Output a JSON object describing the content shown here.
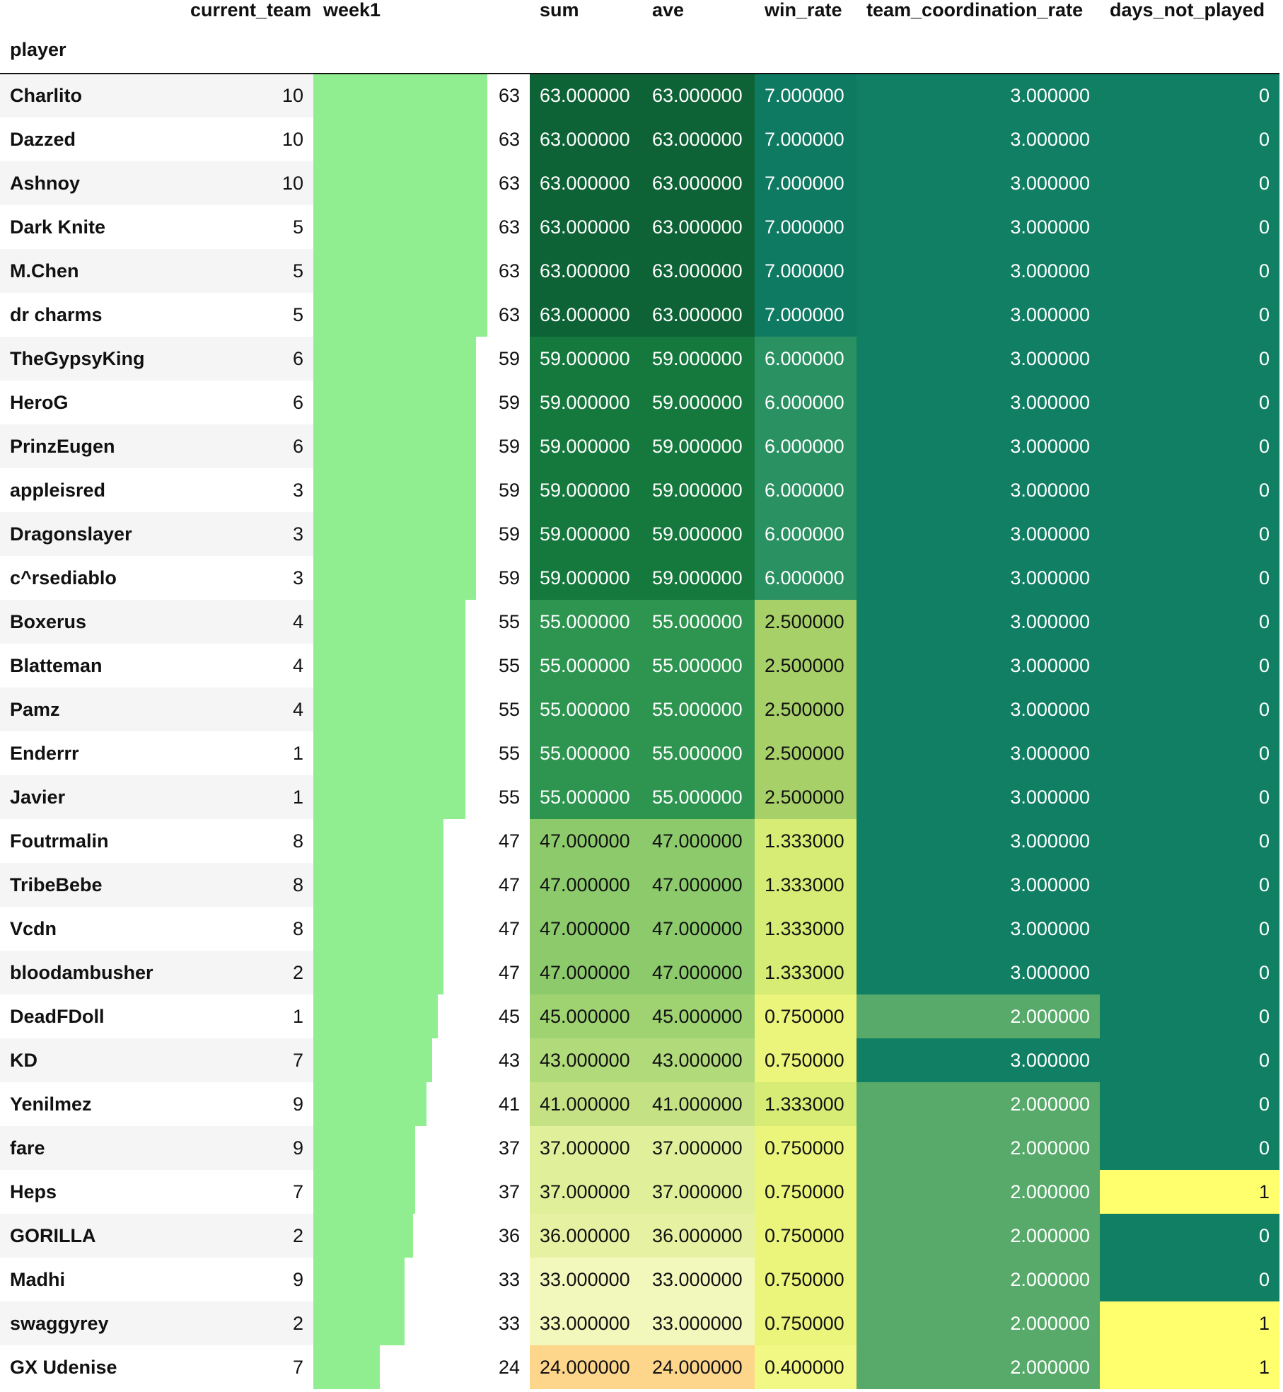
{
  "columns": {
    "index_name": "player",
    "current_team": "current_team",
    "week1": "week1",
    "sum": "sum",
    "ave": "ave",
    "win_rate": "win_rate",
    "team_coordination_rate": "team_coordination_rate",
    "days_not_played": "days_not_played"
  },
  "colors": {
    "bar": "#90ee90",
    "sum_scale": "YlGn",
    "win_scale": "YlGn",
    "coord_high": "#117f64",
    "coord_low": "#57aa6a",
    "days_zero": "#117f64",
    "days_one": "#ffff6e"
  },
  "week1_max": 63,
  "rows": [
    {
      "player": "Charlito",
      "current_team": "10",
      "week1": 63,
      "week1_text": "63",
      "sum": "63.000000",
      "ave": "63.000000",
      "win_rate": "7.000000",
      "team_coordination_rate": "3.000000",
      "days_not_played": "0",
      "sum_bg": "#0d6335",
      "win_bg": "#0e7a62",
      "coord_bg": "#117f64",
      "days_bg": "#117f64"
    },
    {
      "player": "Dazzed",
      "current_team": "10",
      "week1": 63,
      "week1_text": "63",
      "sum": "63.000000",
      "ave": "63.000000",
      "win_rate": "7.000000",
      "team_coordination_rate": "3.000000",
      "days_not_played": "0",
      "sum_bg": "#0d6335",
      "win_bg": "#0e7a62",
      "coord_bg": "#117f64",
      "days_bg": "#117f64"
    },
    {
      "player": "Ashnoy",
      "current_team": "10",
      "week1": 63,
      "week1_text": "63",
      "sum": "63.000000",
      "ave": "63.000000",
      "win_rate": "7.000000",
      "team_coordination_rate": "3.000000",
      "days_not_played": "0",
      "sum_bg": "#0d6335",
      "win_bg": "#0e7a62",
      "coord_bg": "#117f64",
      "days_bg": "#117f64"
    },
    {
      "player": "Dark Knite",
      "current_team": "5",
      "week1": 63,
      "week1_text": "63",
      "sum": "63.000000",
      "ave": "63.000000",
      "win_rate": "7.000000",
      "team_coordination_rate": "3.000000",
      "days_not_played": "0",
      "sum_bg": "#0d6335",
      "win_bg": "#0e7a62",
      "coord_bg": "#117f64",
      "days_bg": "#117f64"
    },
    {
      "player": "M.Chen",
      "current_team": "5",
      "week1": 63,
      "week1_text": "63",
      "sum": "63.000000",
      "ave": "63.000000",
      "win_rate": "7.000000",
      "team_coordination_rate": "3.000000",
      "days_not_played": "0",
      "sum_bg": "#0d6335",
      "win_bg": "#0e7a62",
      "coord_bg": "#117f64",
      "days_bg": "#117f64"
    },
    {
      "player": "dr charms",
      "current_team": "5",
      "week1": 63,
      "week1_text": "63",
      "sum": "63.000000",
      "ave": "63.000000",
      "win_rate": "7.000000",
      "team_coordination_rate": "3.000000",
      "days_not_played": "0",
      "sum_bg": "#0d6335",
      "win_bg": "#0e7a62",
      "coord_bg": "#117f64",
      "days_bg": "#117f64"
    },
    {
      "player": "TheGypsyKing",
      "current_team": "6",
      "week1": 59,
      "week1_text": "59",
      "sum": "59.000000",
      "ave": "59.000000",
      "win_rate": "6.000000",
      "team_coordination_rate": "3.000000",
      "days_not_played": "0",
      "sum_bg": "#15793e",
      "win_bg": "#2a9163",
      "coord_bg": "#117f64",
      "days_bg": "#117f64"
    },
    {
      "player": "HeroG",
      "current_team": "6",
      "week1": 59,
      "week1_text": "59",
      "sum": "59.000000",
      "ave": "59.000000",
      "win_rate": "6.000000",
      "team_coordination_rate": "3.000000",
      "days_not_played": "0",
      "sum_bg": "#15793e",
      "win_bg": "#2a9163",
      "coord_bg": "#117f64",
      "days_bg": "#117f64"
    },
    {
      "player": "PrinzEugen",
      "current_team": "6",
      "week1": 59,
      "week1_text": "59",
      "sum": "59.000000",
      "ave": "59.000000",
      "win_rate": "6.000000",
      "team_coordination_rate": "3.000000",
      "days_not_played": "0",
      "sum_bg": "#15793e",
      "win_bg": "#2a9163",
      "coord_bg": "#117f64",
      "days_bg": "#117f64"
    },
    {
      "player": "appleisred",
      "current_team": "3",
      "week1": 59,
      "week1_text": "59",
      "sum": "59.000000",
      "ave": "59.000000",
      "win_rate": "6.000000",
      "team_coordination_rate": "3.000000",
      "days_not_played": "0",
      "sum_bg": "#15793e",
      "win_bg": "#2a9163",
      "coord_bg": "#117f64",
      "days_bg": "#117f64"
    },
    {
      "player": "Dragonslayer",
      "current_team": "3",
      "week1": 59,
      "week1_text": "59",
      "sum": "59.000000",
      "ave": "59.000000",
      "win_rate": "6.000000",
      "team_coordination_rate": "3.000000",
      "days_not_played": "0",
      "sum_bg": "#15793e",
      "win_bg": "#2a9163",
      "coord_bg": "#117f64",
      "days_bg": "#117f64"
    },
    {
      "player": "c^rsediablo",
      "current_team": "3",
      "week1": 59,
      "week1_text": "59",
      "sum": "59.000000",
      "ave": "59.000000",
      "win_rate": "6.000000",
      "team_coordination_rate": "3.000000",
      "days_not_played": "0",
      "sum_bg": "#15793e",
      "win_bg": "#2a9163",
      "coord_bg": "#117f64",
      "days_bg": "#117f64"
    },
    {
      "player": "Boxerus",
      "current_team": "4",
      "week1": 55,
      "week1_text": "55",
      "sum": "55.000000",
      "ave": "55.000000",
      "win_rate": "2.500000",
      "team_coordination_rate": "3.000000",
      "days_not_played": "0",
      "sum_bg": "#2d954f",
      "win_bg": "#a8d069",
      "coord_bg": "#117f64",
      "days_bg": "#117f64"
    },
    {
      "player": "Blatteman",
      "current_team": "4",
      "week1": 55,
      "week1_text": "55",
      "sum": "55.000000",
      "ave": "55.000000",
      "win_rate": "2.500000",
      "team_coordination_rate": "3.000000",
      "days_not_played": "0",
      "sum_bg": "#2d954f",
      "win_bg": "#a8d069",
      "coord_bg": "#117f64",
      "days_bg": "#117f64"
    },
    {
      "player": "Pamz",
      "current_team": "4",
      "week1": 55,
      "week1_text": "55",
      "sum": "55.000000",
      "ave": "55.000000",
      "win_rate": "2.500000",
      "team_coordination_rate": "3.000000",
      "days_not_played": "0",
      "sum_bg": "#2d954f",
      "win_bg": "#a8d069",
      "coord_bg": "#117f64",
      "days_bg": "#117f64"
    },
    {
      "player": "Enderrr",
      "current_team": "1",
      "week1": 55,
      "week1_text": "55",
      "sum": "55.000000",
      "ave": "55.000000",
      "win_rate": "2.500000",
      "team_coordination_rate": "3.000000",
      "days_not_played": "0",
      "sum_bg": "#2d954f",
      "win_bg": "#a8d069",
      "coord_bg": "#117f64",
      "days_bg": "#117f64"
    },
    {
      "player": "Javier",
      "current_team": "1",
      "week1": 55,
      "week1_text": "55",
      "sum": "55.000000",
      "ave": "55.000000",
      "win_rate": "2.500000",
      "team_coordination_rate": "3.000000",
      "days_not_played": "0",
      "sum_bg": "#2d954f",
      "win_bg": "#a8d069",
      "coord_bg": "#117f64",
      "days_bg": "#117f64"
    },
    {
      "player": "Foutrmalin",
      "current_team": "8",
      "week1": 47,
      "week1_text": "47",
      "sum": "47.000000",
      "ave": "47.000000",
      "win_rate": "1.333000",
      "team_coordination_rate": "3.000000",
      "days_not_played": "0",
      "sum_bg": "#8cca6c",
      "win_bg": "#d7ec74",
      "coord_bg": "#117f64",
      "days_bg": "#117f64"
    },
    {
      "player": "TribeBebe",
      "current_team": "8",
      "week1": 47,
      "week1_text": "47",
      "sum": "47.000000",
      "ave": "47.000000",
      "win_rate": "1.333000",
      "team_coordination_rate": "3.000000",
      "days_not_played": "0",
      "sum_bg": "#8cca6c",
      "win_bg": "#d7ec74",
      "coord_bg": "#117f64",
      "days_bg": "#117f64"
    },
    {
      "player": "Vcdn",
      "current_team": "8",
      "week1": 47,
      "week1_text": "47",
      "sum": "47.000000",
      "ave": "47.000000",
      "win_rate": "1.333000",
      "team_coordination_rate": "3.000000",
      "days_not_played": "0",
      "sum_bg": "#8cca6c",
      "win_bg": "#d7ec74",
      "coord_bg": "#117f64",
      "days_bg": "#117f64"
    },
    {
      "player": "bloodambusher",
      "current_team": "2",
      "week1": 47,
      "week1_text": "47",
      "sum": "47.000000",
      "ave": "47.000000",
      "win_rate": "1.333000",
      "team_coordination_rate": "3.000000",
      "days_not_played": "0",
      "sum_bg": "#8cca6c",
      "win_bg": "#d7ec74",
      "coord_bg": "#117f64",
      "days_bg": "#117f64"
    },
    {
      "player": "DeadFDoll",
      "current_team": "1",
      "week1": 45,
      "week1_text": "45",
      "sum": "45.000000",
      "ave": "45.000000",
      "win_rate": "0.750000",
      "team_coordination_rate": "2.000000",
      "days_not_played": "0",
      "sum_bg": "#9fd372",
      "win_bg": "#ebf57c",
      "coord_bg": "#57aa6a",
      "days_bg": "#117f64"
    },
    {
      "player": "KD",
      "current_team": "7",
      "week1": 43,
      "week1_text": "43",
      "sum": "43.000000",
      "ave": "43.000000",
      "win_rate": "0.750000",
      "team_coordination_rate": "3.000000",
      "days_not_played": "0",
      "sum_bg": "#b1da7a",
      "win_bg": "#ebf57c",
      "coord_bg": "#117f64",
      "days_bg": "#117f64"
    },
    {
      "player": "Yenilmez",
      "current_team": "9",
      "week1": 41,
      "week1_text": "41",
      "sum": "41.000000",
      "ave": "41.000000",
      "win_rate": "1.333000",
      "team_coordination_rate": "2.000000",
      "days_not_played": "0",
      "sum_bg": "#c4e284",
      "win_bg": "#d7ec74",
      "coord_bg": "#57aa6a",
      "days_bg": "#117f64"
    },
    {
      "player": "fare",
      "current_team": "9",
      "week1": 37,
      "week1_text": "37",
      "sum": "37.000000",
      "ave": "37.000000",
      "win_rate": "0.750000",
      "team_coordination_rate": "2.000000",
      "days_not_played": "0",
      "sum_bg": "#e0ef9a",
      "win_bg": "#ebf57c",
      "coord_bg": "#57aa6a",
      "days_bg": "#117f64"
    },
    {
      "player": "Heps",
      "current_team": "7",
      "week1": 37,
      "week1_text": "37",
      "sum": "37.000000",
      "ave": "37.000000",
      "win_rate": "0.750000",
      "team_coordination_rate": "2.000000",
      "days_not_played": "1",
      "sum_bg": "#e0ef9a",
      "win_bg": "#ebf57c",
      "coord_bg": "#57aa6a",
      "days_bg": "#ffff6e"
    },
    {
      "player": "GORILLA",
      "current_team": "2",
      "week1": 36,
      "week1_text": "36",
      "sum": "36.000000",
      "ave": "36.000000",
      "win_rate": "0.750000",
      "team_coordination_rate": "2.000000",
      "days_not_played": "0",
      "sum_bg": "#e6f2a2",
      "win_bg": "#ebf57c",
      "coord_bg": "#57aa6a",
      "days_bg": "#117f64"
    },
    {
      "player": "Madhi",
      "current_team": "9",
      "week1": 33,
      "week1_text": "33",
      "sum": "33.000000",
      "ave": "33.000000",
      "win_rate": "0.750000",
      "team_coordination_rate": "2.000000",
      "days_not_played": "0",
      "sum_bg": "#f2f8bb",
      "win_bg": "#ebf57c",
      "coord_bg": "#57aa6a",
      "days_bg": "#117f64"
    },
    {
      "player": "swaggyrey",
      "current_team": "2",
      "week1": 33,
      "week1_text": "33",
      "sum": "33.000000",
      "ave": "33.000000",
      "win_rate": "0.750000",
      "team_coordination_rate": "2.000000",
      "days_not_played": "1",
      "sum_bg": "#f2f8bb",
      "win_bg": "#ebf57c",
      "coord_bg": "#57aa6a",
      "days_bg": "#ffff6e"
    },
    {
      "player": "GX Udenise",
      "current_team": "7",
      "week1": 24,
      "week1_text": "24",
      "sum": "24.000000",
      "ave": "24.000000",
      "win_rate": "0.400000",
      "team_coordination_rate": "2.000000",
      "days_not_played": "1",
      "sum_bg": "#fdd58b",
      "win_bg": "#f2f884",
      "coord_bg": "#57aa6a",
      "days_bg": "#ffff6e"
    }
  ]
}
